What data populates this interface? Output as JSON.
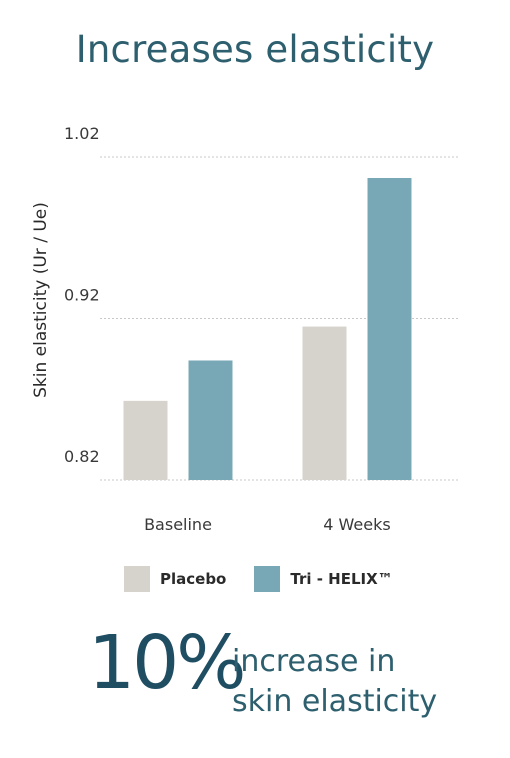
{
  "chart_data": {
    "type": "bar",
    "title": "Increases elasticity",
    "ylabel": "Skin elasticity (Ur / Ue)",
    "categories": [
      "Baseline",
      "4 Weeks"
    ],
    "series": [
      {
        "name": "Placebo",
        "values": [
          0.869,
          0.915
        ],
        "color": "#d6d3cd"
      },
      {
        "name": "Tri - HELIX™",
        "values": [
          0.894,
          1.007
        ],
        "color": "#78a8b6"
      }
    ],
    "ylim": [
      0.82,
      1.02
    ],
    "yticks": [
      "1.02",
      "0.92",
      "0.82"
    ],
    "grid": true,
    "legend": "bottom"
  },
  "stat": {
    "number": "10%",
    "line1": "increase in",
    "line2": "skin elasticity"
  }
}
